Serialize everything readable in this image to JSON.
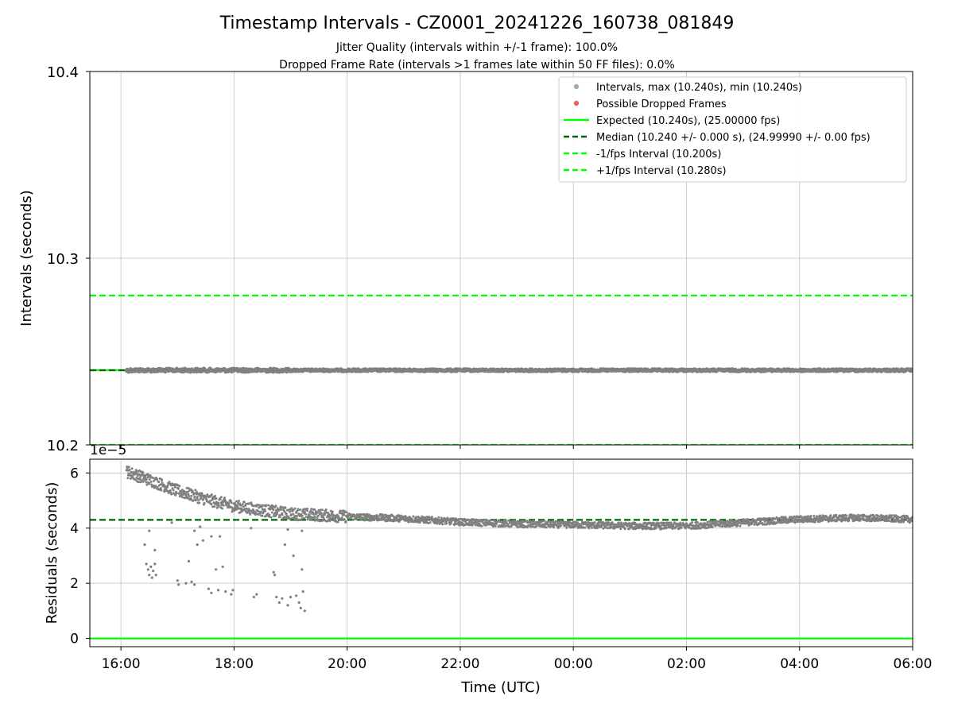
{
  "header": {
    "title": "Timestamp Intervals - CZ0001_20241226_160738_081849",
    "subtitle1": "Jitter Quality (intervals within +/-1 frame): 100.0%",
    "subtitle2": "Dropped Frame Rate (intervals >1 frames late within 50 FF files): 0.0%"
  },
  "colors": {
    "points": "#808080",
    "legend_points": "#a9a9a9",
    "dropped": "#f06060",
    "expected": "#00ff00",
    "median": "#006400",
    "grid": "#cccccc"
  },
  "chart_data": [
    {
      "type": "scatter",
      "name": "intervals",
      "ylabel": "Intervals (seconds)",
      "xlabel": "",
      "ylim": [
        10.2,
        10.4
      ],
      "xlim_hours": [
        15.45,
        30.0
      ],
      "yticks": [
        {
          "value": 10.2,
          "label": "10.2"
        },
        {
          "value": 10.3,
          "label": "10.3"
        },
        {
          "value": 10.4,
          "label": "10.4"
        }
      ],
      "grid": true,
      "legend_position": "top-right",
      "legend": [
        {
          "label": "Intervals, max (10.240s), min (10.240s)",
          "kind": "dot",
          "color": "#a9a9a9"
        },
        {
          "label": "Possible Dropped Frames",
          "kind": "dot",
          "color": "#f06060"
        },
        {
          "label": "Expected (10.240s), (25.00000 fps)",
          "kind": "solid",
          "color": "#00ff00"
        },
        {
          "label": "Median (10.240 +/- 0.000 s), (24.99990 +/- 0.00 fps)",
          "kind": "dashed",
          "color": "#006400"
        },
        {
          "label": "-1/fps Interval (10.200s)",
          "kind": "dashed",
          "color": "#00ff00"
        },
        {
          "label": "+1/fps Interval (10.280s)",
          "kind": "dashed",
          "color": "#00ff00"
        }
      ],
      "reference_lines": [
        {
          "name": "expected",
          "y": 10.24,
          "style": "solid",
          "color": "#00ff00"
        },
        {
          "name": "median",
          "y": 10.24,
          "style": "dashed",
          "color": "#006400"
        },
        {
          "name": "minus-fps",
          "y": 10.2,
          "style": "dashed",
          "color": "#00ff00"
        },
        {
          "name": "plus-fps",
          "y": 10.28,
          "style": "dashed",
          "color": "#00ff00"
        }
      ],
      "series": [
        {
          "x_range_hours": [
            16.1,
            30.0
          ],
          "y": 10.24,
          "max": 10.24,
          "min": 10.24
        }
      ]
    },
    {
      "type": "scatter",
      "name": "residuals",
      "ylabel": "Residuals (seconds)",
      "xlabel": "Time (UTC)",
      "y_multiplier_label": "1e−5",
      "ylim": [
        -0.3,
        6.5
      ],
      "yticks": [
        {
          "value": 0,
          "label": "0"
        },
        {
          "value": 2,
          "label": "2"
        },
        {
          "value": 4,
          "label": "4"
        },
        {
          "value": 6,
          "label": "6"
        }
      ],
      "xticks": [
        {
          "value": 16,
          "label": "16:00"
        },
        {
          "value": 18,
          "label": "18:00"
        },
        {
          "value": 20,
          "label": "20:00"
        },
        {
          "value": 22,
          "label": "22:00"
        },
        {
          "value": 24,
          "label": "00:00"
        },
        {
          "value": 26,
          "label": "02:00"
        },
        {
          "value": 28,
          "label": "04:00"
        },
        {
          "value": 30,
          "label": "06:00"
        }
      ],
      "grid": true,
      "reference_lines": [
        {
          "name": "median",
          "y": 4.3,
          "style": "dashed",
          "color": "#006400"
        },
        {
          "name": "zero",
          "y": 0,
          "style": "solid",
          "color": "#00ff00"
        }
      ],
      "trend": [
        {
          "x": 16.1,
          "y": 6.05
        },
        {
          "x": 16.5,
          "y": 5.75
        },
        {
          "x": 17.0,
          "y": 5.35
        },
        {
          "x": 17.5,
          "y": 5.05
        },
        {
          "x": 18.0,
          "y": 4.8
        },
        {
          "x": 18.5,
          "y": 4.65
        },
        {
          "x": 19.0,
          "y": 4.52
        },
        {
          "x": 20.0,
          "y": 4.42
        },
        {
          "x": 21.0,
          "y": 4.35
        },
        {
          "x": 22.0,
          "y": 4.22
        },
        {
          "x": 23.0,
          "y": 4.15
        },
        {
          "x": 24.0,
          "y": 4.12
        },
        {
          "x": 25.0,
          "y": 4.08
        },
        {
          "x": 26.0,
          "y": 4.08
        },
        {
          "x": 27.0,
          "y": 4.2
        },
        {
          "x": 28.0,
          "y": 4.32
        },
        {
          "x": 29.0,
          "y": 4.38
        },
        {
          "x": 30.0,
          "y": 4.32
        }
      ],
      "outliers": [
        {
          "x": 16.42,
          "y": 3.4
        },
        {
          "x": 16.45,
          "y": 2.7
        },
        {
          "x": 16.48,
          "y": 2.5
        },
        {
          "x": 16.5,
          "y": 2.3
        },
        {
          "x": 16.53,
          "y": 2.6
        },
        {
          "x": 16.55,
          "y": 2.2
        },
        {
          "x": 16.57,
          "y": 2.45
        },
        {
          "x": 16.6,
          "y": 2.7
        },
        {
          "x": 16.62,
          "y": 2.3
        },
        {
          "x": 16.5,
          "y": 3.9
        },
        {
          "x": 16.6,
          "y": 3.2
        },
        {
          "x": 16.9,
          "y": 4.2
        },
        {
          "x": 17.0,
          "y": 2.1
        },
        {
          "x": 17.02,
          "y": 1.95
        },
        {
          "x": 17.15,
          "y": 2.0
        },
        {
          "x": 17.2,
          "y": 2.8
        },
        {
          "x": 17.25,
          "y": 2.05
        },
        {
          "x": 17.3,
          "y": 1.95
        },
        {
          "x": 17.3,
          "y": 3.9
        },
        {
          "x": 17.35,
          "y": 3.4
        },
        {
          "x": 17.4,
          "y": 4.05
        },
        {
          "x": 17.45,
          "y": 3.55
        },
        {
          "x": 17.55,
          "y": 1.8
        },
        {
          "x": 17.6,
          "y": 1.65
        },
        {
          "x": 17.6,
          "y": 3.7
        },
        {
          "x": 17.68,
          "y": 2.5
        },
        {
          "x": 17.72,
          "y": 1.75
        },
        {
          "x": 17.75,
          "y": 3.7
        },
        {
          "x": 17.8,
          "y": 2.6
        },
        {
          "x": 17.85,
          "y": 1.7
        },
        {
          "x": 17.95,
          "y": 1.6
        },
        {
          "x": 17.98,
          "y": 1.75
        },
        {
          "x": 18.35,
          "y": 1.5
        },
        {
          "x": 18.4,
          "y": 1.6
        },
        {
          "x": 18.3,
          "y": 4.0
        },
        {
          "x": 18.7,
          "y": 2.4
        },
        {
          "x": 18.72,
          "y": 2.3
        },
        {
          "x": 18.75,
          "y": 1.5
        },
        {
          "x": 18.8,
          "y": 1.3
        },
        {
          "x": 18.85,
          "y": 1.45
        },
        {
          "x": 18.9,
          "y": 3.4
        },
        {
          "x": 18.95,
          "y": 1.2
        },
        {
          "x": 19.0,
          "y": 1.5
        },
        {
          "x": 19.05,
          "y": 3.0
        },
        {
          "x": 19.1,
          "y": 1.55
        },
        {
          "x": 19.15,
          "y": 1.3
        },
        {
          "x": 19.18,
          "y": 1.1
        },
        {
          "x": 19.2,
          "y": 2.5
        },
        {
          "x": 19.22,
          "y": 1.7
        },
        {
          "x": 19.25,
          "y": 1.0
        },
        {
          "x": 19.2,
          "y": 3.9
        },
        {
          "x": 18.95,
          "y": 3.95
        }
      ]
    }
  ]
}
